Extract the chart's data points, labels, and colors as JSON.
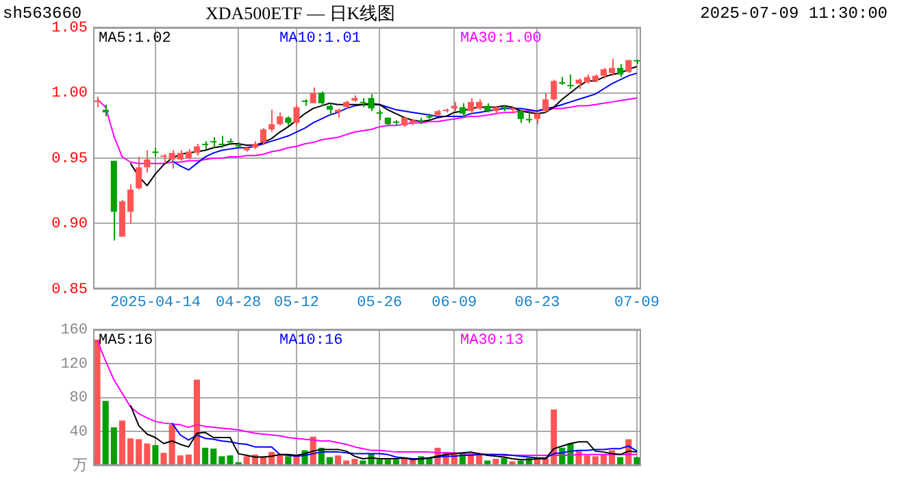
{
  "chart_data": [
    {
      "type": "candlestick",
      "title": "XDA500ETF — 日K线图",
      "subtitle": "sh563660",
      "annotations": [
        "2025-07-09 11:30:00"
      ],
      "categories": [
        null,
        null,
        null,
        null,
        null,
        null,
        null,
        "2025-04-14",
        null,
        null,
        null,
        null,
        null,
        null,
        null,
        null,
        null,
        "04-28",
        null,
        null,
        null,
        null,
        null,
        null,
        "05-12",
        null,
        null,
        null,
        null,
        null,
        null,
        null,
        null,
        null,
        "05-26",
        null,
        null,
        null,
        null,
        null,
        null,
        null,
        null,
        "06-09",
        null,
        null,
        null,
        null,
        null,
        null,
        null,
        null,
        null,
        "06-23",
        null,
        null,
        null,
        null,
        null,
        null,
        null,
        null,
        null,
        null,
        null,
        "07-09"
      ],
      "ohlc": [
        [
          0.993,
          0.997,
          0.989,
          0.994
        ],
        [
          0.987,
          0.991,
          0.982,
          0.985
        ],
        [
          0.948,
          0.948,
          0.887,
          0.909
        ],
        [
          0.89,
          0.918,
          0.89,
          0.917
        ],
        [
          0.909,
          0.93,
          0.9,
          0.926
        ],
        [
          0.927,
          0.951,
          0.926,
          0.943
        ],
        [
          0.943,
          0.956,
          0.939,
          0.949
        ],
        [
          0.955,
          0.958,
          0.951,
          0.954
        ],
        [
          0.951,
          0.953,
          0.946,
          0.952
        ],
        [
          0.949,
          0.956,
          0.942,
          0.954
        ],
        [
          0.949,
          0.956,
          0.948,
          0.954
        ],
        [
          0.95,
          0.957,
          0.949,
          0.955
        ],
        [
          0.954,
          0.961,
          0.952,
          0.959
        ],
        [
          0.961,
          0.963,
          0.957,
          0.96
        ],
        [
          0.963,
          0.966,
          0.958,
          0.962
        ],
        [
          0.961,
          0.967,
          0.958,
          0.96
        ],
        [
          0.963,
          0.965,
          0.96,
          0.962
        ],
        [
          0.96,
          0.962,
          0.958,
          0.959
        ],
        [
          0.956,
          0.959,
          0.955,
          0.958
        ],
        [
          0.958,
          0.963,
          0.957,
          0.961
        ],
        [
          0.962,
          0.973,
          0.96,
          0.972
        ],
        [
          0.972,
          0.987,
          0.97,
          0.976
        ],
        [
          0.976,
          0.985,
          0.975,
          0.982
        ],
        [
          0.981,
          0.982,
          0.975,
          0.977
        ],
        [
          0.977,
          0.991,
          0.975,
          0.989
        ],
        [
          0.994,
          0.995,
          0.99,
          0.993
        ],
        [
          0.992,
          1.004,
          0.992,
          1.0
        ],
        [
          1.0,
          1.001,
          0.99,
          0.992
        ],
        [
          0.99,
          0.992,
          0.983,
          0.987
        ],
        [
          0.985,
          0.988,
          0.981,
          0.987
        ],
        [
          0.989,
          0.994,
          0.988,
          0.993
        ],
        [
          0.994,
          0.998,
          0.993,
          0.996
        ],
        [
          0.993,
          0.996,
          0.989,
          0.992
        ],
        [
          0.996,
          0.999,
          0.986,
          0.988
        ],
        [
          0.985,
          0.987,
          0.979,
          0.984
        ],
        [
          0.981,
          0.981,
          0.975,
          0.976
        ],
        [
          0.978,
          0.979,
          0.975,
          0.977
        ],
        [
          0.975,
          0.982,
          0.974,
          0.981
        ],
        [
          0.977,
          0.98,
          0.975,
          0.979
        ],
        [
          0.979,
          0.981,
          0.976,
          0.978
        ],
        [
          0.982,
          0.984,
          0.98,
          0.981
        ],
        [
          0.983,
          0.987,
          0.982,
          0.986
        ],
        [
          0.986,
          0.988,
          0.985,
          0.987
        ],
        [
          0.988,
          0.993,
          0.986,
          0.99
        ],
        [
          0.989,
          0.992,
          0.981,
          0.984
        ],
        [
          0.986,
          0.996,
          0.984,
          0.993
        ],
        [
          0.988,
          0.995,
          0.987,
          0.993
        ],
        [
          0.99,
          0.992,
          0.985,
          0.986
        ],
        [
          0.986,
          0.99,
          0.984,
          0.989
        ],
        [
          0.989,
          0.99,
          0.986,
          0.988
        ],
        [
          0.987,
          0.989,
          0.984,
          0.988
        ],
        [
          0.986,
          0.987,
          0.977,
          0.98
        ],
        [
          0.98,
          0.985,
          0.977,
          0.979
        ],
        [
          0.98,
          0.985,
          0.976,
          0.984
        ],
        [
          0.986,
          1.0,
          0.985,
          0.995
        ],
        [
          0.995,
          1.01,
          0.994,
          1.009
        ],
        [
          1.008,
          1.012,
          1.006,
          1.007
        ],
        [
          1.006,
          1.014,
          1.003,
          1.005
        ],
        [
          1.007,
          1.011,
          1.003,
          1.01
        ],
        [
          1.008,
          1.014,
          1.007,
          1.012
        ],
        [
          1.009,
          1.014,
          1.008,
          1.013
        ],
        [
          1.013,
          1.019,
          1.011,
          1.018
        ],
        [
          1.015,
          1.026,
          1.013,
          1.019
        ],
        [
          1.019,
          1.022,
          1.012,
          1.014
        ],
        [
          1.016,
          1.025,
          1.015,
          1.025
        ],
        [
          1.025,
          1.025,
          1.022,
          1.024
        ]
      ],
      "colors": [
        "#ff5555",
        "#00a000",
        "#00a000",
        "#ff5555",
        "#ff5555",
        "#ff5555",
        "#ff5555",
        "#00a000",
        "#ff5555",
        "#ff5555",
        "#ff5555",
        "#ff5555",
        "#ff5555",
        "#00a000",
        "#00a000",
        "#00a000",
        "#00a000",
        "#00a000",
        "#ff5555",
        "#ff5555",
        "#ff5555",
        "#ff5555",
        "#ff5555",
        "#00a000",
        "#ff5555",
        "#00a000",
        "#ff5555",
        "#00a000",
        "#00a000",
        "#ff5555",
        "#ff5555",
        "#ff5555",
        "#00a000",
        "#00a000",
        "#00a000",
        "#00a000",
        "#00a000",
        "#ff5555",
        "#ff5555",
        "#00a000",
        "#00a000",
        "#ff5555",
        "#ff5555",
        "#ff5555",
        "#00a000",
        "#ff5555",
        "#ff5555",
        "#00a000",
        "#ff5555",
        "#00a000",
        "#ff5555",
        "#00a000",
        "#00a000",
        "#ff5555",
        "#ff5555",
        "#ff5555",
        "#00a000",
        "#00a000",
        "#ff5555",
        "#ff5555",
        "#ff5555",
        "#ff5555",
        "#ff5555",
        "#00a000",
        "#ff5555",
        "#00a000"
      ],
      "series": [
        {
          "name": "MA5:1.02",
          "type": "line",
          "color": "#000000",
          "values": [
            null,
            null,
            null,
            null,
            0.946,
            0.936,
            0.929,
            0.938,
            0.945,
            0.95,
            0.953,
            0.954,
            0.955,
            0.956,
            0.958,
            0.959,
            0.961,
            0.961,
            0.96,
            0.96,
            0.962,
            0.965,
            0.97,
            0.974,
            0.979,
            0.984,
            0.988,
            0.99,
            0.992,
            0.991,
            0.991,
            0.991,
            0.991,
            0.991,
            0.991,
            0.987,
            0.984,
            0.981,
            0.979,
            0.978,
            0.979,
            0.981,
            0.982,
            0.985,
            0.986,
            0.988,
            0.989,
            0.989,
            0.989,
            0.99,
            0.989,
            0.986,
            0.985,
            0.984,
            0.985,
            0.989,
            0.995,
            1.0,
            1.005,
            1.009,
            1.009,
            1.012,
            1.014,
            1.015,
            1.018,
            1.02
          ]
        },
        {
          "name": "MA10:1.01",
          "type": "line",
          "color": "#0000ff",
          "values": [
            null,
            null,
            null,
            null,
            null,
            null,
            null,
            null,
            null,
            0.948,
            0.944,
            0.941,
            0.946,
            0.951,
            0.954,
            0.956,
            0.957,
            0.958,
            0.958,
            0.959,
            0.961,
            0.963,
            0.965,
            0.967,
            0.97,
            0.973,
            0.977,
            0.98,
            0.983,
            0.985,
            0.988,
            0.99,
            0.991,
            0.992,
            0.991,
            0.989,
            0.987,
            0.986,
            0.985,
            0.984,
            0.983,
            0.982,
            0.982,
            0.982,
            0.982,
            0.984,
            0.985,
            0.986,
            0.987,
            0.988,
            0.988,
            0.988,
            0.987,
            0.986,
            0.988,
            0.989,
            0.991,
            0.993,
            0.995,
            0.997,
            0.999,
            1.003,
            1.007,
            1.01,
            1.013,
            1.015
          ]
        },
        {
          "name": "MA30:1.00",
          "type": "line",
          "color": "#ff00ff",
          "values": [
            0.995,
            0.989,
            0.967,
            0.951,
            0.947,
            0.946,
            0.946,
            0.946,
            0.946,
            0.947,
            0.947,
            0.948,
            0.948,
            0.949,
            0.95,
            0.95,
            0.951,
            0.951,
            0.952,
            0.952,
            0.953,
            0.955,
            0.956,
            0.958,
            0.959,
            0.961,
            0.962,
            0.964,
            0.965,
            0.966,
            0.968,
            0.97,
            0.971,
            0.972,
            0.974,
            0.975,
            0.975,
            0.976,
            0.977,
            0.977,
            0.978,
            0.978,
            0.979,
            0.98,
            0.981,
            0.982,
            0.982,
            0.983,
            0.984,
            0.985,
            0.985,
            0.986,
            0.986,
            0.986,
            0.987,
            0.988,
            0.988,
            0.989,
            0.99,
            0.99,
            0.991,
            0.992,
            0.993,
            0.994,
            0.995,
            0.996
          ]
        }
      ],
      "ylim": [
        0.85,
        1.05
      ],
      "yticks": [
        {
          "value": 0.85,
          "label": "0.85"
        },
        {
          "value": 0.9,
          "label": "0.90"
        },
        {
          "value": 0.95,
          "label": "0.95"
        },
        {
          "value": 1.0,
          "label": "1.00"
        },
        {
          "value": 1.05,
          "label": "1.05"
        }
      ],
      "grid": true,
      "legend": "top"
    },
    {
      "type": "bar",
      "categories": [
        null,
        null,
        null,
        null,
        null,
        null,
        null,
        null,
        null,
        null,
        null,
        null,
        null,
        null,
        null,
        null,
        null,
        null,
        null,
        null,
        null,
        null,
        null,
        null,
        null,
        null,
        null,
        null,
        null,
        null,
        null,
        null,
        null,
        null,
        null,
        null,
        null,
        null,
        null,
        null,
        null,
        null,
        null,
        null,
        null,
        null,
        null,
        null,
        null,
        null,
        null,
        null,
        null,
        null,
        null,
        null,
        null,
        null,
        null,
        null,
        null,
        null,
        null,
        null,
        null,
        null
      ],
      "values": [
        148,
        76,
        45,
        53,
        32,
        31,
        26,
        24,
        15,
        48,
        12,
        13,
        101,
        21,
        20,
        11,
        12,
        4,
        11,
        13,
        11,
        16,
        13,
        11,
        11,
        18,
        34,
        21,
        10,
        12,
        6,
        8,
        6,
        14,
        7,
        7,
        7,
        9,
        7,
        11,
        9,
        21,
        16,
        14,
        14,
        14,
        14,
        6,
        8,
        9,
        5,
        6,
        9,
        9,
        9,
        66,
        21,
        26,
        17,
        12,
        11,
        13,
        18,
        10,
        31,
        10
      ],
      "colors": [
        "#ff5555",
        "#00a000",
        "#00a000",
        "#ff5555",
        "#ff5555",
        "#ff5555",
        "#ff5555",
        "#00a000",
        "#ff5555",
        "#ff5555",
        "#ff5555",
        "#ff5555",
        "#ff5555",
        "#00a000",
        "#00a000",
        "#00a000",
        "#00a000",
        "#00a000",
        "#ff5555",
        "#ff5555",
        "#ff5555",
        "#ff5555",
        "#ff5555",
        "#00a000",
        "#ff5555",
        "#00a000",
        "#ff5555",
        "#00a000",
        "#00a000",
        "#ff5555",
        "#ff5555",
        "#ff5555",
        "#00a000",
        "#00a000",
        "#00a000",
        "#00a000",
        "#00a000",
        "#ff5555",
        "#ff5555",
        "#00a000",
        "#00a000",
        "#ff5555",
        "#ff5555",
        "#ff5555",
        "#00a000",
        "#ff5555",
        "#ff5555",
        "#00a000",
        "#ff5555",
        "#00a000",
        "#ff5555",
        "#00a000",
        "#00a000",
        "#ff5555",
        "#ff5555",
        "#ff5555",
        "#00a000",
        "#00a000",
        "#ff5555",
        "#ff5555",
        "#ff5555",
        "#ff5555",
        "#ff5555",
        "#00a000",
        "#ff5555",
        "#00a000"
      ],
      "series": [
        {
          "name": "MA5:16",
          "type": "line",
          "color": "#000000",
          "values": [
            null,
            null,
            null,
            null,
            71,
            47,
            37,
            33,
            26,
            29,
            25,
            22,
            38,
            39,
            33,
            33,
            33,
            14,
            12,
            10,
            10,
            11,
            13,
            13,
            12,
            14,
            17,
            19,
            19,
            19,
            17,
            11,
            8,
            9,
            8,
            8,
            8,
            9,
            7,
            8,
            9,
            11,
            13,
            14,
            15,
            16,
            14,
            12,
            11,
            10,
            8,
            7,
            7,
            8,
            8,
            20,
            23,
            26,
            28,
            28,
            17,
            16,
            14,
            13,
            17,
            16
          ]
        },
        {
          "name": "MA10:16",
          "type": "line",
          "color": "#0000ff",
          "values": [
            null,
            null,
            null,
            null,
            null,
            null,
            null,
            null,
            null,
            50,
            36,
            30,
            36,
            32,
            31,
            29,
            28,
            26,
            25,
            22,
            22,
            22,
            13,
            12,
            11,
            12,
            14,
            16,
            16,
            16,
            15,
            14,
            14,
            14,
            14,
            13,
            10,
            9,
            8,
            8,
            9,
            10,
            11,
            11,
            12,
            12,
            13,
            13,
            13,
            13,
            12,
            11,
            10,
            9,
            9,
            14,
            15,
            17,
            18,
            18,
            19,
            19,
            20,
            20,
            23,
            17
          ]
        },
        {
          "name": "MA30:13",
          "type": "line",
          "color": "#ff00ff",
          "values": [
            147,
            123,
            101,
            85,
            69,
            61,
            56,
            52,
            50,
            49,
            48,
            45,
            48,
            46,
            45,
            44,
            43,
            42,
            40,
            38,
            37,
            36,
            35,
            33,
            32,
            31,
            30,
            29,
            29,
            27,
            25,
            22,
            20,
            18,
            18,
            17,
            16,
            16,
            16,
            16,
            16,
            15,
            15,
            15,
            14,
            14,
            14,
            13,
            13,
            12,
            12,
            12,
            12,
            12,
            12,
            12,
            12,
            12,
            13,
            13,
            13,
            13,
            13,
            13,
            13,
            13
          ]
        }
      ],
      "ylim": [
        0,
        160
      ],
      "yticks": [
        {
          "value": 0,
          "label": "万"
        },
        40,
        80,
        120,
        160
      ],
      "grid": true,
      "legend": "top",
      "tick_labels": "y"
    }
  ]
}
